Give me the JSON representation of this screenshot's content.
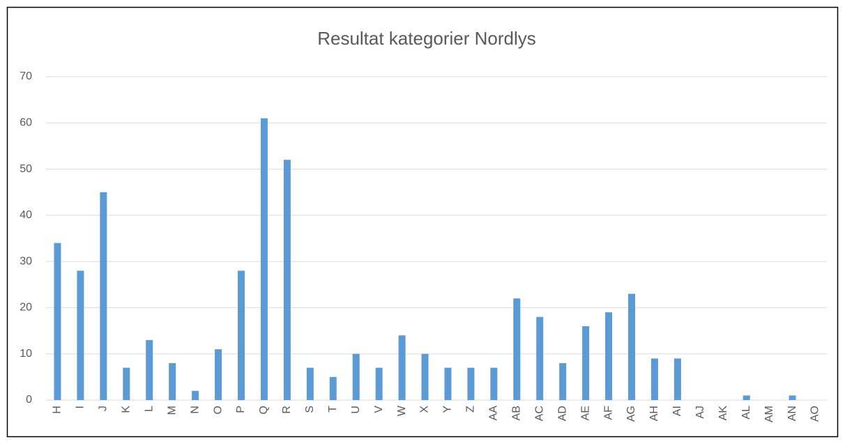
{
  "chart_data": {
    "type": "bar",
    "title": "Resultat kategorier Nordlys",
    "categories": [
      "H",
      "I",
      "J",
      "K",
      "L",
      "M",
      "N",
      "O",
      "P",
      "Q",
      "R",
      "S",
      "T",
      "U",
      "V",
      "W",
      "X",
      "Y",
      "Z",
      "AA",
      "AB",
      "AC",
      "AD",
      "AE",
      "AF",
      "AG",
      "AH",
      "AI",
      "AJ",
      "AK",
      "AL",
      "AM",
      "AN",
      "AO"
    ],
    "values": [
      34,
      28,
      45,
      7,
      13,
      8,
      2,
      11,
      28,
      61,
      52,
      7,
      5,
      10,
      7,
      14,
      10,
      7,
      7,
      7,
      22,
      18,
      8,
      16,
      19,
      23,
      9,
      9,
      0,
      0,
      1,
      0,
      1,
      0
    ],
    "color": "#5b9bd5",
    "ylim": [
      0,
      70
    ],
    "yticks": [
      0,
      10,
      20,
      30,
      40,
      50,
      60,
      70
    ],
    "grid": true
  }
}
